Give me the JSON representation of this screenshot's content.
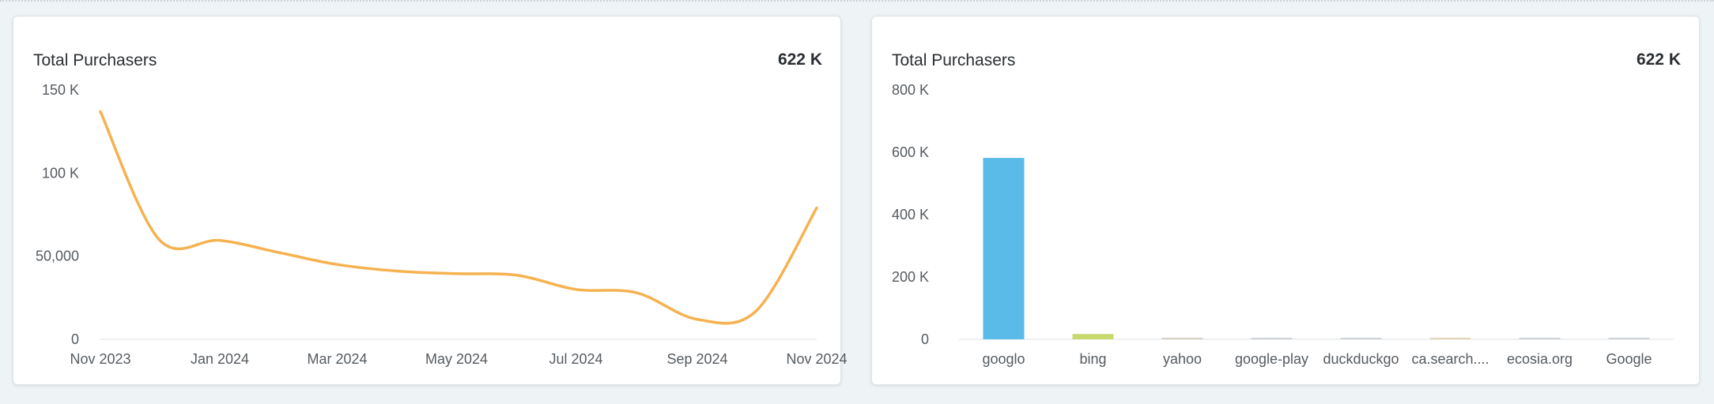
{
  "colors": {
    "line": "#f5b24f",
    "bar_default": "#c9ced3",
    "axis": "#dde3e6"
  },
  "cards": [
    {
      "title": "Total Purchasers",
      "total": "622 K"
    },
    {
      "title": "Total Purchasers",
      "total": "622 K"
    }
  ],
  "chart_data": [
    {
      "type": "line",
      "title": "Total Purchasers",
      "xlabel": "",
      "ylabel": "",
      "ylim": [
        0,
        150000
      ],
      "y_ticks": [
        {
          "value": 0,
          "label": "0"
        },
        {
          "value": 50000,
          "label": "50,000"
        },
        {
          "value": 100000,
          "label": "100 K"
        },
        {
          "value": 150000,
          "label": "150 K"
        }
      ],
      "x_range": [
        "2023-11-01",
        "2024-11-01"
      ],
      "x_ticks": [
        {
          "date": "2023-11-01",
          "label": "Nov 2023"
        },
        {
          "date": "2024-01-01",
          "label": "Jan 2024"
        },
        {
          "date": "2024-03-01",
          "label": "Mar 2024"
        },
        {
          "date": "2024-05-01",
          "label": "May 2024"
        },
        {
          "date": "2024-07-01",
          "label": "Jul 2024"
        },
        {
          "date": "2024-09-01",
          "label": "Sep 2024"
        },
        {
          "date": "2024-11-01",
          "label": "Nov 2024"
        }
      ],
      "series": [
        {
          "color": "#f5b24f",
          "points": [
            {
              "x": "2023-11-01",
              "y": 137000
            },
            {
              "x": "2023-12-01",
              "y": 60000
            },
            {
              "x": "2024-01-01",
              "y": 59500
            },
            {
              "x": "2024-02-01",
              "y": 52000
            },
            {
              "x": "2024-03-01",
              "y": 45000
            },
            {
              "x": "2024-04-01",
              "y": 41000
            },
            {
              "x": "2024-05-01",
              "y": 39500
            },
            {
              "x": "2024-06-01",
              "y": 38500
            },
            {
              "x": "2024-07-01",
              "y": 30000
            },
            {
              "x": "2024-08-01",
              "y": 28000
            },
            {
              "x": "2024-09-01",
              "y": 12000
            },
            {
              "x": "2024-10-01",
              "y": 17000
            },
            {
              "x": "2024-11-01",
              "y": 79000
            }
          ]
        }
      ],
      "grid": false,
      "legend": "none"
    },
    {
      "type": "bar",
      "title": "Total Purchasers",
      "xlabel": "",
      "ylabel": "",
      "ylim": [
        0,
        800000
      ],
      "y_ticks": [
        {
          "value": 0,
          "label": "0"
        },
        {
          "value": 200000,
          "label": "200 K"
        },
        {
          "value": 400000,
          "label": "400 K"
        },
        {
          "value": 600000,
          "label": "600 K"
        },
        {
          "value": 800000,
          "label": "800 K"
        }
      ],
      "categories": [
        "googlo",
        "bing",
        "yahoo",
        "google-play",
        "duckduckgo",
        "ca.search....",
        "ecosia.org",
        "Google"
      ],
      "values": [
        582000,
        17000,
        1200,
        900,
        1500,
        800,
        900,
        700
      ],
      "bar_colors": [
        "#5bbbe8",
        "#c6d96a",
        "#d8d0c4",
        "#cdd3d8",
        "#cdd3d8",
        "#e6d6b8",
        "#cdd3d8",
        "#cdd3d8"
      ],
      "grid": false,
      "legend": "none"
    }
  ]
}
